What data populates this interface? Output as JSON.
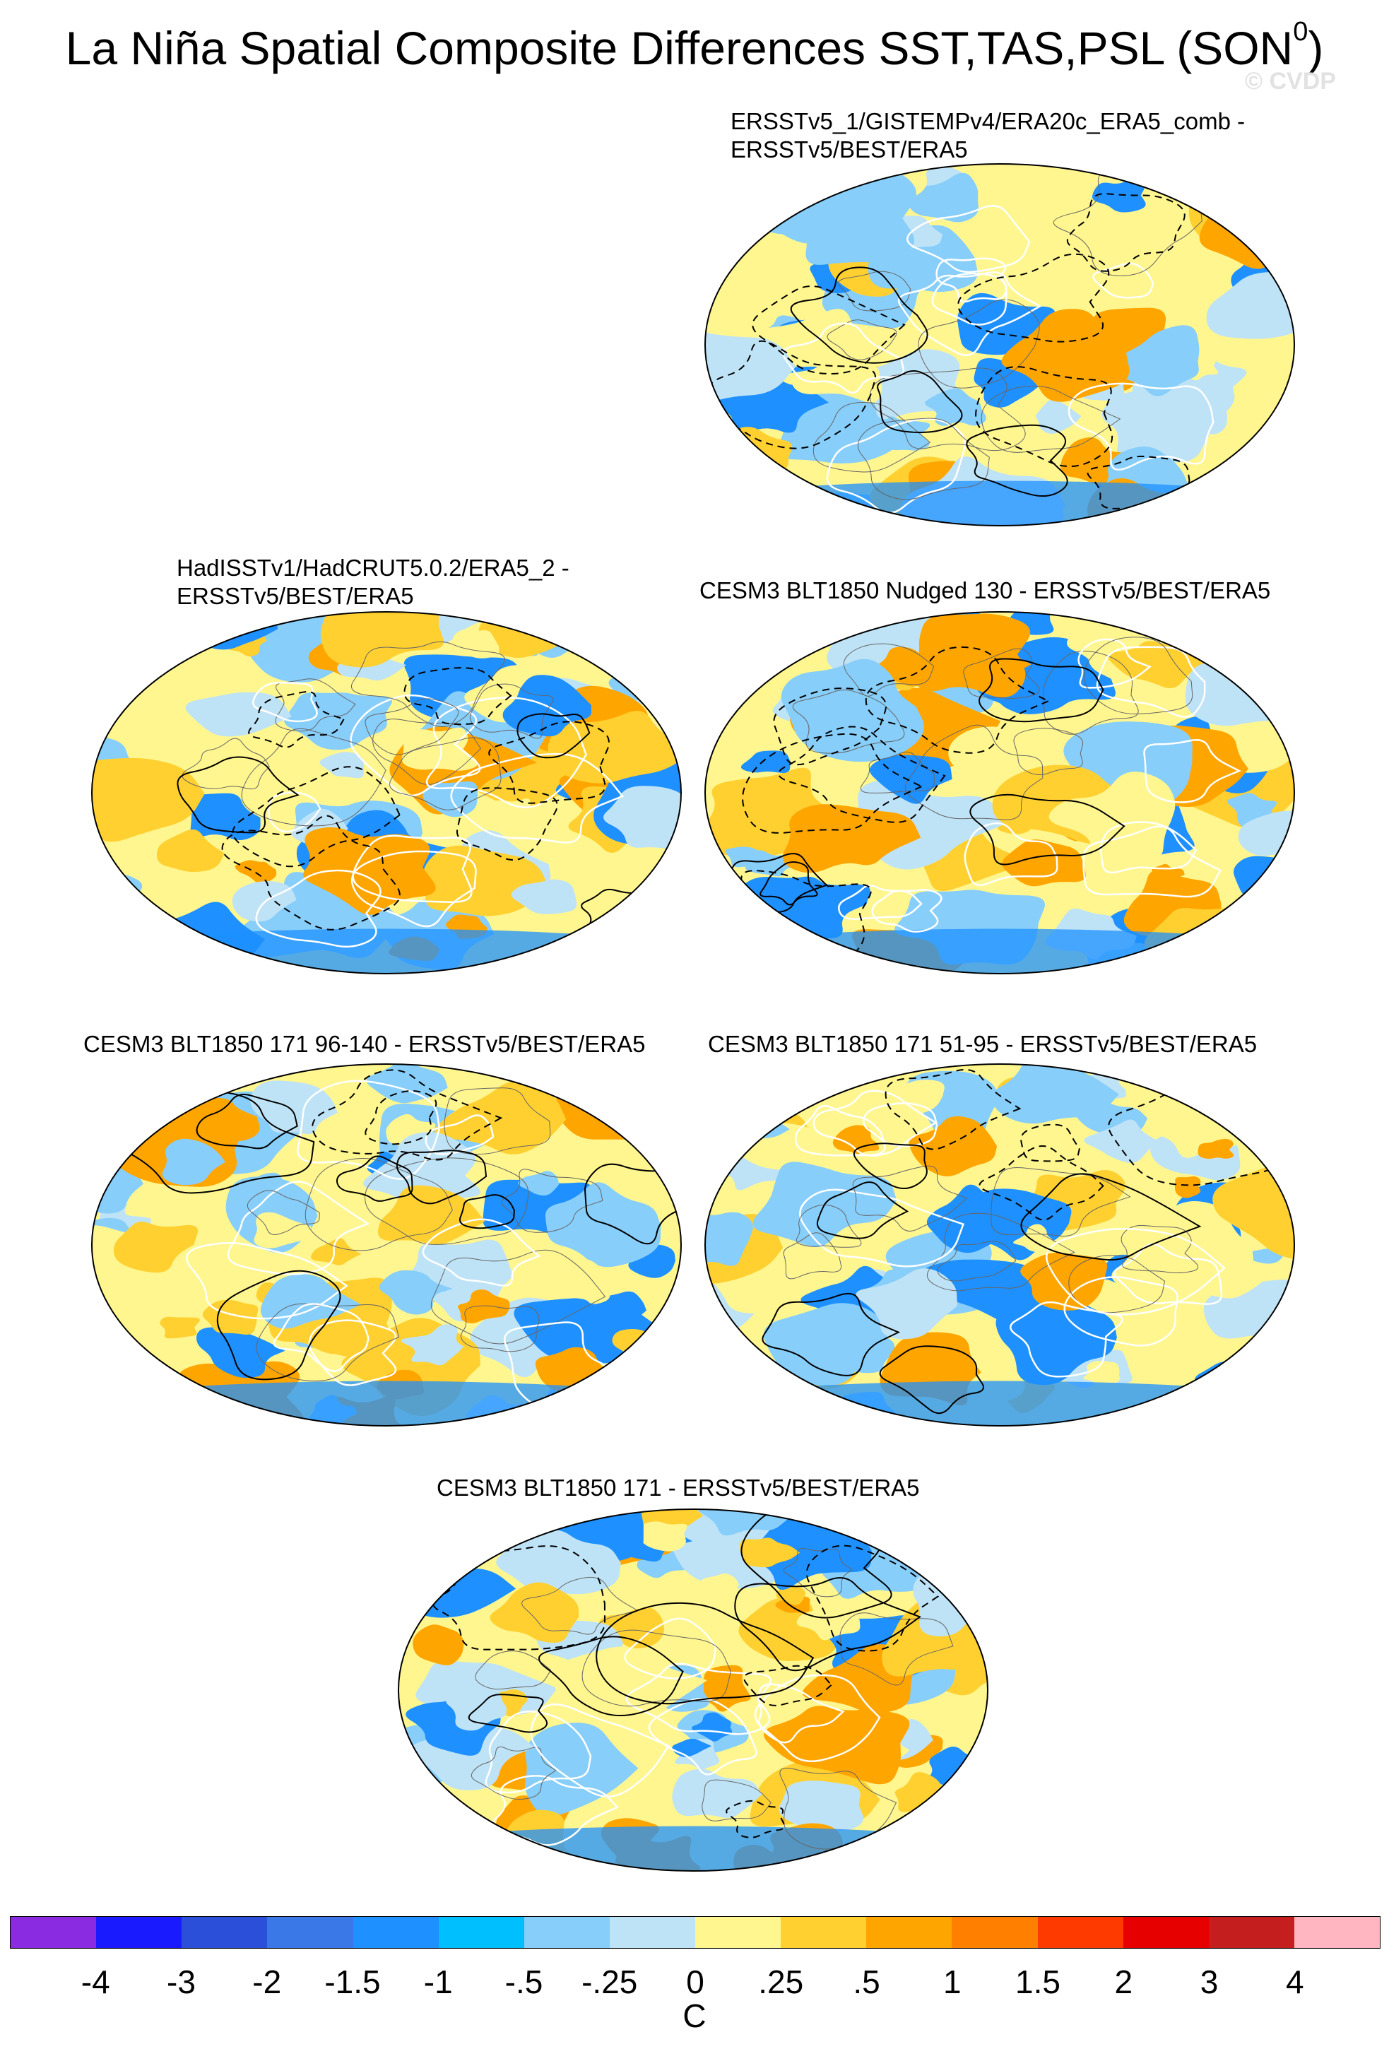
{
  "figure": {
    "title": "La Niña Spatial Composite Differences SST,TAS,PSL (SON",
    "title_superscript": "0",
    "title_close": ")",
    "watermark": "© CVDP"
  },
  "panels": [
    {
      "title_line1": "ERSSTv5_1/GISTEMPv4/ERA20c_ERA5_comb -",
      "title_line2": "ERSSTv5/BEST/ERA5"
    },
    {
      "title_line1": "HadISSTv1/HadCRUT5.0.2/ERA5_2 -",
      "title_line2": "ERSSTv5/BEST/ERA5"
    },
    {
      "title_line1": "CESM3 BLT1850 Nudged 130 - ERSSTv5/BEST/ERA5",
      "title_line2": ""
    },
    {
      "title_line1": "CESM3 BLT1850 171 96-140 - ERSSTv5/BEST/ERA5",
      "title_line2": ""
    },
    {
      "title_line1": "CESM3 BLT1850 171 51-95 - ERSSTv5/BEST/ERA5",
      "title_line2": ""
    },
    {
      "title_line1": "CESM3 BLT1850 171 - ERSSTv5/BEST/ERA5",
      "title_line2": ""
    }
  ],
  "colorbar": {
    "unit": "C",
    "ticks": [
      "-4",
      "-3",
      "-2",
      "-1.5",
      "-1",
      "-.5",
      "-.25",
      "0",
      ".25",
      ".5",
      "1",
      "1.5",
      "2",
      "3",
      "4"
    ],
    "colors": [
      "#8a2be2",
      "#1a1aff",
      "#2b4fd8",
      "#3a78e8",
      "#1e90ff",
      "#00bfff",
      "#87cefa",
      "#bfe3f6",
      "#fff68f",
      "#ffd030",
      "#ffa500",
      "#ff7f00",
      "#ff3a00",
      "#e60000",
      "#c41e1e",
      "#ffb6c1"
    ]
  }
}
